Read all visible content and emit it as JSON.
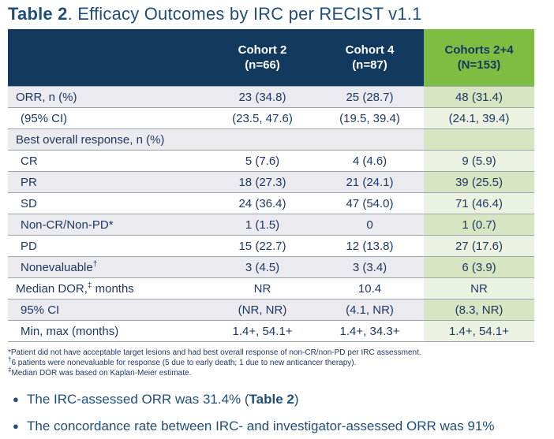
{
  "title": {
    "bold": "Table 2",
    "rest": ". Efficacy Outcomes by IRC per RECIST v1.1"
  },
  "colors": {
    "header_navy": "#12395E",
    "header_green": "#7EBD42",
    "row_gray": "#EAEAEF",
    "row_white": "#FFFFFF",
    "green_cell_dark": "#D7E5C2",
    "green_cell_light": "#EBF2E1",
    "divider_gray": "#9BA3AB",
    "text_navy": "#1F3864",
    "title_blue": "#1F4E79"
  },
  "table": {
    "columns": [
      {
        "line1": "Cohort 2",
        "line2": "(n=66)",
        "highlight": false
      },
      {
        "line1": "Cohort 4",
        "line2": "(n=87)",
        "highlight": false
      },
      {
        "line1": "Cohorts 2+4",
        "line2": "(N=153)",
        "highlight": true
      }
    ],
    "rows": [
      {
        "label": "ORR, n (%)",
        "indent": 0,
        "values": [
          "23 (34.8)",
          "25 (28.7)",
          "48 (31.4)"
        ]
      },
      {
        "label": "(95% CI)",
        "indent": 1,
        "values": [
          "(23.5, 47.6)",
          "(19.5, 39.4)",
          "(24.1, 39.4)"
        ]
      },
      {
        "label": "Best overall response, n (%)",
        "indent": 0,
        "values": [
          "",
          "",
          ""
        ]
      },
      {
        "label": "CR",
        "indent": 1,
        "values": [
          "5 (7.6)",
          "4 (4.6)",
          "9 (5.9)"
        ]
      },
      {
        "label": "PR",
        "indent": 1,
        "values": [
          "18 (27.3)",
          "21 (24.1)",
          "39 (25.5)"
        ]
      },
      {
        "label": "SD",
        "indent": 1,
        "values": [
          "24 (36.4)",
          "47 (54.0)",
          "71 (46.4)"
        ]
      },
      {
        "label": "Non-CR/Non-PD*",
        "indent": 1,
        "values": [
          "1 (1.5)",
          "0",
          "1 (0.7)"
        ]
      },
      {
        "label": "PD",
        "indent": 1,
        "values": [
          "15 (22.7)",
          "12 (13.8)",
          "27 (17.6)"
        ]
      },
      {
        "label": "Nonevaluable†",
        "indent": 1,
        "values": [
          "3 (4.5)",
          "3 (3.4)",
          "6 (3.9)"
        ]
      },
      {
        "label": "Median DOR,‡ months",
        "indent": 0,
        "values": [
          "NR",
          "10.4",
          "NR"
        ]
      },
      {
        "label": "95% CI",
        "indent": 1,
        "values": [
          "(NR, NR)",
          "(4.1, NR)",
          "(8.3, NR)"
        ]
      },
      {
        "label": "Min, max (months)",
        "indent": 1,
        "values": [
          "1.4+, 54.1+",
          "1.4+, 34.3+",
          "1.4+, 54.1+"
        ]
      }
    ],
    "footnotes": [
      "*Patient did not have acceptable target lesions and had best overall response of non-CR/non-PD per IRC assessment.",
      "†6 patients were nonevaluable for response (5 due to early death; 1 due to new anticancer therapy).",
      "‡Median DOR was based on Kaplan-Meier estimate."
    ]
  },
  "bullets": [
    {
      "segments": [
        {
          "text": "The IRC-assessed ORR was 31.4% (",
          "bold": false
        },
        {
          "text": "Table 2",
          "bold": true
        },
        {
          "text": ")",
          "bold": false
        }
      ]
    },
    {
      "segments": [
        {
          "text": "The concordance rate between IRC- and investigator-assessed ORR was 91%",
          "bold": false
        }
      ]
    }
  ]
}
